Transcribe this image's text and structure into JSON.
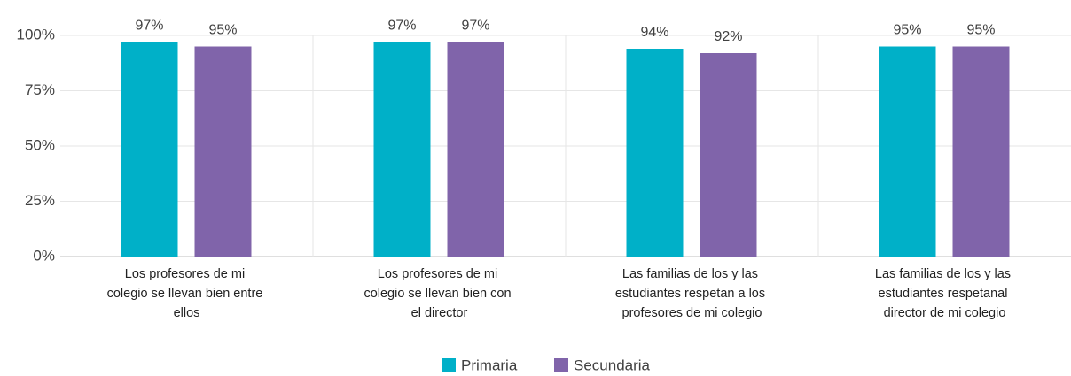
{
  "chart_data": {
    "type": "bar",
    "categories": [
      "Los profesores de mi colegio se llevan bien entre ellos",
      "Los profesores de mi colegio se llevan bien con el  director",
      "Las familias de los y las estudiantes respetan a los profesores de mi colegio",
      "Las familias de los y las estudiantes respetanal director de mi colegio"
    ],
    "series": [
      {
        "name": "Primaria",
        "color": "#00b0c8",
        "values": [
          97,
          97,
          94,
          95
        ],
        "value_labels": [
          "97%",
          "97%",
          "94%",
          "95%"
        ]
      },
      {
        "name": "Secundaria",
        "color": "#8064aa",
        "values": [
          95,
          97,
          92,
          95
        ],
        "value_labels": [
          "95%",
          "97%",
          "92%",
          "95%"
        ]
      }
    ],
    "ylim": [
      0,
      100
    ],
    "yticks": [
      {
        "value": 0,
        "label": "0%"
      },
      {
        "value": 25,
        "label": "25%"
      },
      {
        "value": 50,
        "label": "50%"
      },
      {
        "value": 75,
        "label": "75%"
      },
      {
        "value": 100,
        "label": "100%"
      }
    ],
    "grid": true,
    "legend": "bottom"
  }
}
